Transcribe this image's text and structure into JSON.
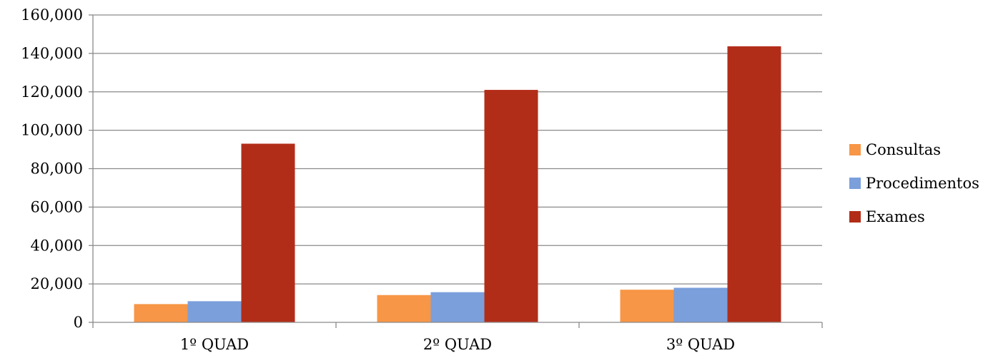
{
  "chart_data": {
    "type": "bar",
    "categories": [
      "1º QUAD",
      "2º QUAD",
      "3º QUAD"
    ],
    "series": [
      {
        "name": "Consultas",
        "values": [
          9500,
          14200,
          17000
        ],
        "color": "#F79646"
      },
      {
        "name": "Procedimentos",
        "values": [
          11000,
          15700,
          18000
        ],
        "color": "#7B9FDB"
      },
      {
        "name": "Exames",
        "values": [
          93000,
          121000,
          143700
        ],
        "color": "#B22D18"
      }
    ],
    "y_ticks": [
      "0",
      "20,000",
      "40,000",
      "60,000",
      "80,000",
      "100,000",
      "120,000",
      "140,000",
      "160,000"
    ],
    "ylim": [
      0,
      160000
    ],
    "ytick_step": 20000,
    "grid": true,
    "legend_position": "right",
    "title": "",
    "xlabel": "",
    "ylabel": ""
  }
}
